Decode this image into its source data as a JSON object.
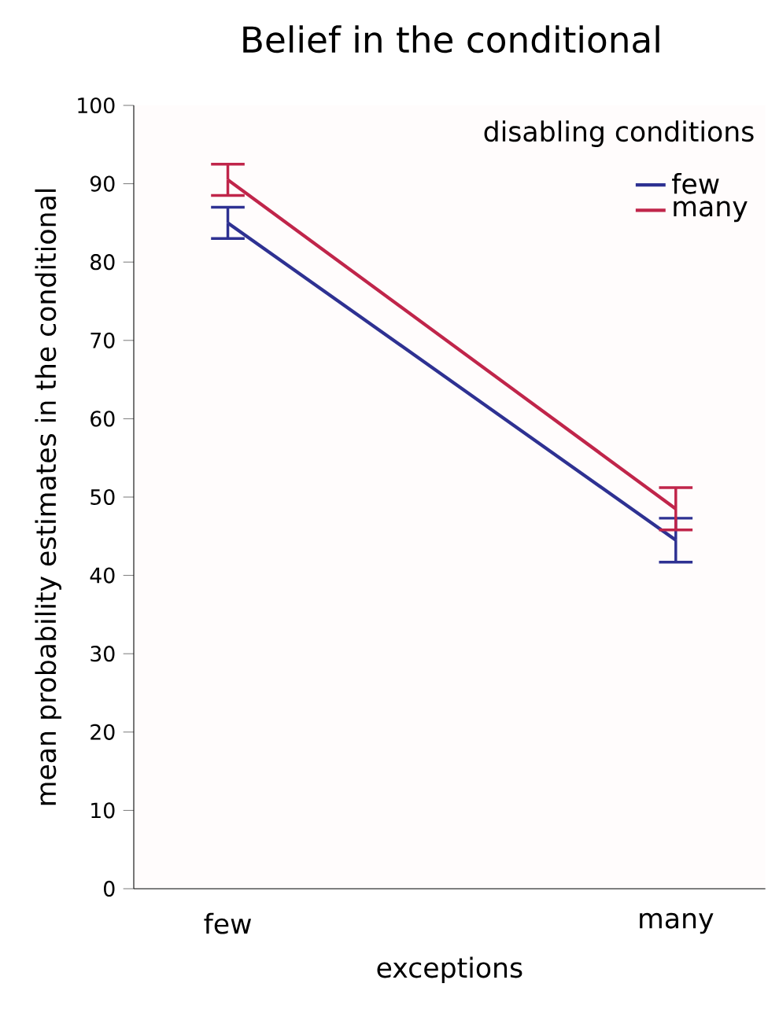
{
  "chart_data": {
    "type": "line",
    "title": "Belief in the conditional",
    "xlabel": "exceptions",
    "ylabel": "mean probability estimates in the conditional",
    "legend_title": "disabling conditions",
    "categories": [
      "few",
      "many"
    ],
    "series": [
      {
        "name": "few",
        "color": "#2e3192",
        "values": [
          85.0,
          44.5
        ],
        "errors": [
          2.0,
          2.8
        ]
      },
      {
        "name": "many",
        "color": "#c0254a",
        "values": [
          90.5,
          48.5
        ],
        "errors": [
          2.0,
          2.7
        ]
      }
    ],
    "ylim": [
      0,
      100
    ],
    "yticks": [
      0,
      10,
      20,
      30,
      40,
      50,
      60,
      70,
      80,
      90,
      100
    ],
    "grid": false,
    "legend": "top right",
    "marker": "none",
    "line_style": "solid"
  }
}
